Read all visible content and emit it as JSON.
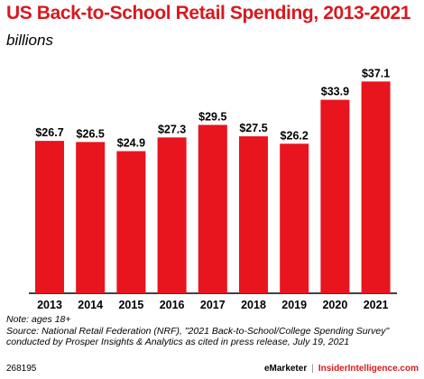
{
  "header": {
    "title": "US Back-to-School Retail Spending, 2013-2021",
    "subtitle": "billions"
  },
  "chart_data": {
    "type": "bar",
    "categories": [
      "2013",
      "2014",
      "2015",
      "2016",
      "2017",
      "2018",
      "2019",
      "2020",
      "2021"
    ],
    "values": [
      26.7,
      26.5,
      24.9,
      27.3,
      29.5,
      27.5,
      26.2,
      33.9,
      37.1
    ],
    "value_labels": [
      "$26.7",
      "$26.5",
      "$24.9",
      "$27.3",
      "$29.5",
      "$27.5",
      "$26.2",
      "$33.9",
      "$37.1"
    ],
    "ylim": [
      0,
      40
    ],
    "grid": false,
    "bar_color": "#e8141e",
    "xlabel": "",
    "ylabel": ""
  },
  "notes": {
    "line1": "Note: ages 18+",
    "line2": "Source: National Retail Federation (NRF), \"2021 Back-to-School/College Spending Survey\"",
    "line3": "conducted by Prosper Insights & Analytics as cited in press release, July 19, 2021"
  },
  "footer": {
    "id": "268195",
    "brand1": "eMarketer",
    "separator": "|",
    "brand2": "InsiderIntelligence.com"
  },
  "colors": {
    "accent": "#d7191f",
    "bar": "#e8141e"
  }
}
